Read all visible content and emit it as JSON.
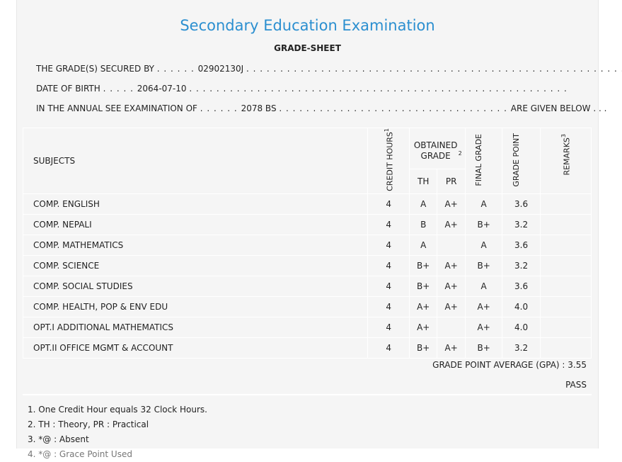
{
  "header": {
    "title": "Secondary Education Examination",
    "subtitle": "GRADE-SHEET"
  },
  "student": {
    "secured_by_label": "THE GRADE(S) SECURED BY",
    "symbol_no": "02902130J",
    "dob_label": "DATE OF BIRTH",
    "dob": "2064-07-10",
    "exam_label": "IN THE ANNUAL SEE EXAMINATION OF",
    "exam_year": "2078 BS",
    "given_below": "ARE GIVEN BELOW . . ."
  },
  "table": {
    "headers": {
      "subjects": "SUBJECTS",
      "credit_hours": "CREDIT HOURS",
      "credit_hours_sup": "1",
      "obtained_grade": "OBTAINED GRADE",
      "obtained_grade_sup": "2",
      "th": "TH",
      "pr": "PR",
      "final_grade": "FINAL GRADE",
      "grade_point": "GRADE POINT",
      "remarks": "REMARKS",
      "remarks_sup": "3"
    },
    "rows": [
      {
        "subject": "COMP. ENGLISH",
        "credit": "4",
        "th": "A",
        "pr": "A+",
        "final": "A",
        "gp": "3.6",
        "remarks": ""
      },
      {
        "subject": "COMP. NEPALI",
        "credit": "4",
        "th": "B",
        "pr": "A+",
        "final": "B+",
        "gp": "3.2",
        "remarks": ""
      },
      {
        "subject": "COMP. MATHEMATICS",
        "credit": "4",
        "th": "A",
        "pr": "",
        "final": "A",
        "gp": "3.6",
        "remarks": ""
      },
      {
        "subject": "COMP. SCIENCE",
        "credit": "4",
        "th": "B+",
        "pr": "A+",
        "final": "B+",
        "gp": "3.2",
        "remarks": ""
      },
      {
        "subject": "COMP. SOCIAL STUDIES",
        "credit": "4",
        "th": "B+",
        "pr": "A+",
        "final": "A",
        "gp": "3.6",
        "remarks": ""
      },
      {
        "subject": "COMP. HEALTH, POP & ENV EDU",
        "credit": "4",
        "th": "A+",
        "pr": "A+",
        "final": "A+",
        "gp": "4.0",
        "remarks": ""
      },
      {
        "subject": "OPT.I ADDITIONAL MATHEMATICS",
        "credit": "4",
        "th": "A+",
        "pr": "",
        "final": "A+",
        "gp": "4.0",
        "remarks": ""
      },
      {
        "subject": "OPT.II OFFICE MGMT & ACCOUNT",
        "credit": "4",
        "th": "B+",
        "pr": "A+",
        "final": "B+",
        "gp": "3.2",
        "remarks": ""
      }
    ]
  },
  "summary": {
    "gpa_label": "GRADE POINT AVERAGE (GPA) :",
    "gpa": "3.55",
    "result": "PASS"
  },
  "notes": [
    "1. One Credit Hour equals 32 Clock Hours.",
    "2. TH : Theory, PR : Practical",
    "3. *@ : Absent",
    "4. *@ : Grace Point Used"
  ]
}
